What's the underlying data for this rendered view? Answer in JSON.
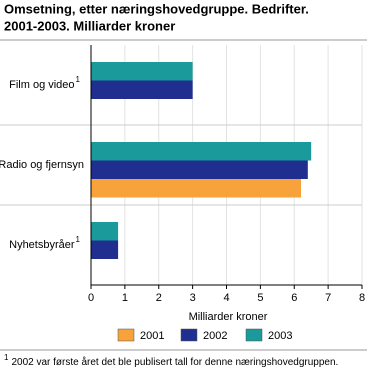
{
  "chart_data": {
    "type": "barh",
    "title": "Omsetning, etter næringshovedgruppe. Bedrifter.",
    "subtitle": "2001-2003. Milliarder kroner",
    "categories": [
      "Film og video",
      "Radio og fjernsyn",
      "Nyhetsbyråer"
    ],
    "category_notes": [
      "1",
      null,
      "1"
    ],
    "series": [
      {
        "name": "2001",
        "color": "#f7a23b",
        "values": [
          null,
          6.2,
          null
        ]
      },
      {
        "name": "2002",
        "color": "#1f2e8f",
        "values": [
          3.0,
          6.4,
          0.8
        ]
      },
      {
        "name": "2003",
        "color": "#1a9a9a",
        "values": [
          3.0,
          6.5,
          0.8
        ]
      }
    ],
    "xlabel": "Milliarder kroner",
    "xlim": [
      0,
      8
    ],
    "xticks": [
      0,
      1,
      2,
      3,
      4,
      5,
      6,
      7,
      8
    ],
    "grid": true,
    "legend": "bottom",
    "footnote": {
      "marker": "1",
      "text": "2002 var første året det ble publisert tall for denne næringshovedgruppen."
    }
  }
}
